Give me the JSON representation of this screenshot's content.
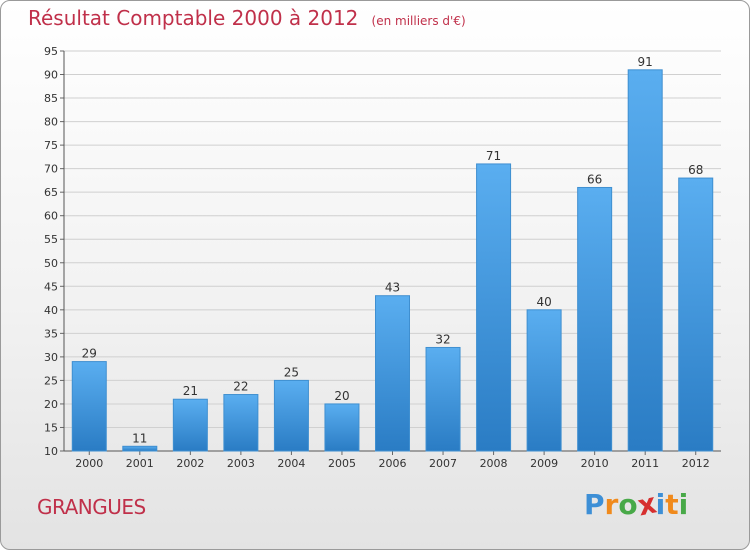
{
  "header": {
    "title": "Résultat Comptable 2000 à 2012",
    "unit": "(en milliers d'€)"
  },
  "footer": {
    "commune": "GRANGUES",
    "logo_letters": [
      "P",
      "r",
      "o",
      "x",
      "i",
      "t",
      "i"
    ],
    "logo_colors": [
      "#3d8fd6",
      "#f08a1c",
      "#48a948",
      "#d62f2f",
      "#3d8fd6",
      "#f08a1c",
      "#48a948"
    ]
  },
  "colors": {
    "bar_light": "#5aaef0",
    "bar_dark": "#2a7cc4",
    "title": "#c0304a",
    "grid": "#d0d0d0"
  },
  "chart_data": {
    "type": "bar",
    "title": "Résultat Comptable 2000 à 2012",
    "categories": [
      "2000",
      "2001",
      "2002",
      "2003",
      "2004",
      "2005",
      "2006",
      "2007",
      "2008",
      "2009",
      "2010",
      "2011",
      "2012"
    ],
    "values": [
      29,
      11,
      21,
      22,
      25,
      20,
      43,
      32,
      71,
      40,
      66,
      91,
      68
    ],
    "ylim": [
      10,
      95
    ],
    "yticks": [
      10,
      15,
      20,
      25,
      30,
      35,
      40,
      45,
      50,
      55,
      60,
      65,
      70,
      75,
      80,
      85,
      90,
      95
    ],
    "grid": true,
    "xlabel": "",
    "ylabel": ""
  }
}
